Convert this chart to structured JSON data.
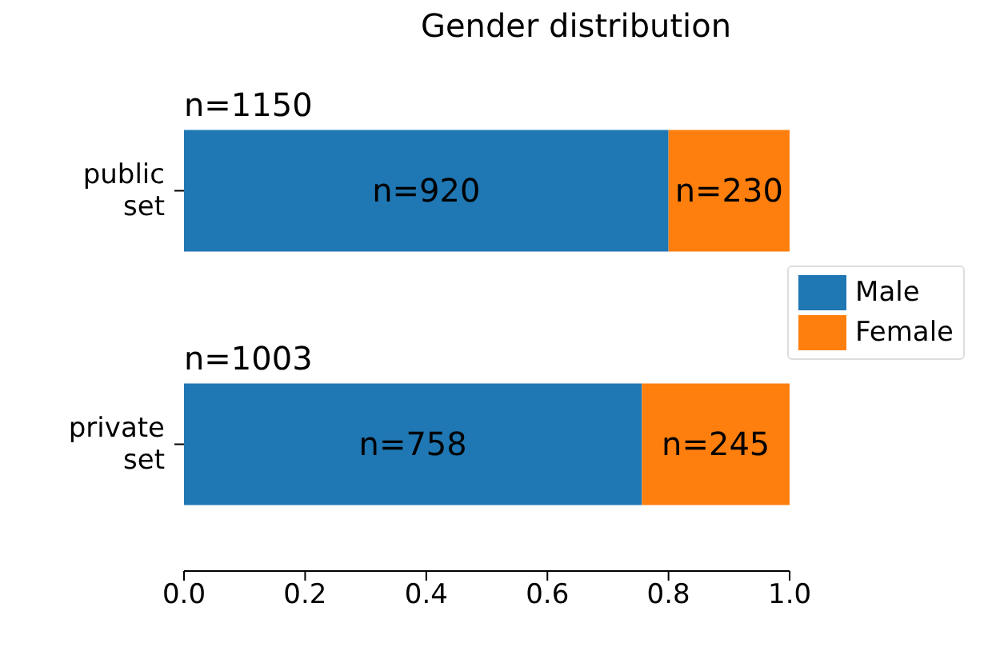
{
  "chart_data": {
    "type": "bar",
    "title": "Gender distribution",
    "orientation": "horizontal",
    "stacked": true,
    "categories": [
      "public set",
      "private set"
    ],
    "series": [
      {
        "name": "Male",
        "color": "#1f77b4",
        "values": [
          0.8,
          0.756
        ]
      },
      {
        "name": "Female",
        "color": "#ff7f0e",
        "values": [
          0.2,
          0.244
        ]
      }
    ],
    "annotations": [
      "n=920",
      "n=230",
      "n=758",
      "n=245",
      {
        "text": "n=1150",
        "x": 0,
        "y": "public set"
      },
      {
        "text": "n=1003",
        "x": 0,
        "y": "private set"
      }
    ],
    "xlim": [
      0,
      1
    ],
    "xticks": [
      {
        "value": 0,
        "label": "0.0"
      },
      {
        "value": 0.2,
        "label": "0.2"
      },
      {
        "value": 0.4,
        "label": "0.4"
      },
      {
        "value": 0.6,
        "label": "0.6"
      },
      {
        "value": 0.8,
        "label": "0.8"
      },
      {
        "value": 1,
        "label": "1.0"
      }
    ],
    "grid": false,
    "legend": "right"
  }
}
